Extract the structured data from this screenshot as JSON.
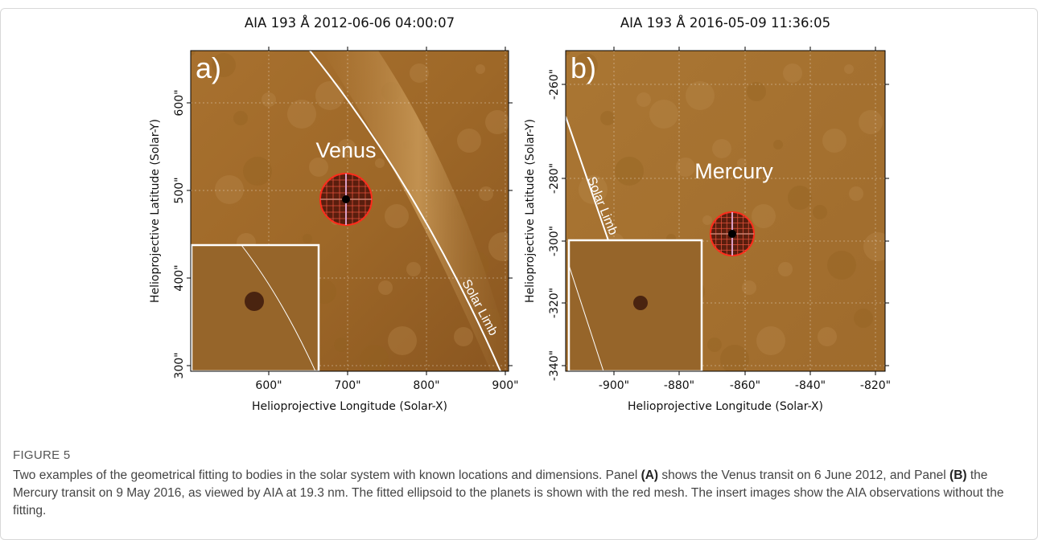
{
  "figure": {
    "panels": [
      {
        "label": "a)",
        "title": "AIA 193 Å 2012-06-06 04:00:07",
        "xlabel": "Helioprojective Longitude (Solar-X)",
        "ylabel": "Helioprojective Latitude (Solar-Y)",
        "xticks": [
          "600\"",
          "700\"",
          "800\"",
          "900\""
        ],
        "yticks": [
          "300\"",
          "400\"",
          "500\"",
          "600\""
        ],
        "planet": "Venus",
        "limb": "Solar Limb"
      },
      {
        "label": "b)",
        "title": "AIA 193 Å 2016-05-09 11:36:05",
        "xlabel": "Helioprojective Longitude (Solar-X)",
        "ylabel": "Helioprojective Latitude (Solar-Y)",
        "xticks": [
          "-900\"",
          "-880\"",
          "-860\"",
          "-840\"",
          "-820\""
        ],
        "yticks": [
          "-340\"",
          "-320\"",
          "-300\"",
          "-280\"",
          "-260\""
        ],
        "planet": "Mercury",
        "limb": "Solar Limb"
      }
    ],
    "caption": {
      "label": "FIGURE 5",
      "parts": [
        "Two examples of the geometrical fitting to bodies in the solar system with known locations and dimensions. Panel ",
        "(A)",
        " shows the Venus transit on 6 June 2012, and Panel ",
        "(B)",
        " the Mercury transit on 9 May 2016, as viewed by AIA at 19.3 nm. The fitted ellipsoid to the planets is shown with the red mesh. The insert images show the AIA observations without the fitting."
      ]
    }
  }
}
